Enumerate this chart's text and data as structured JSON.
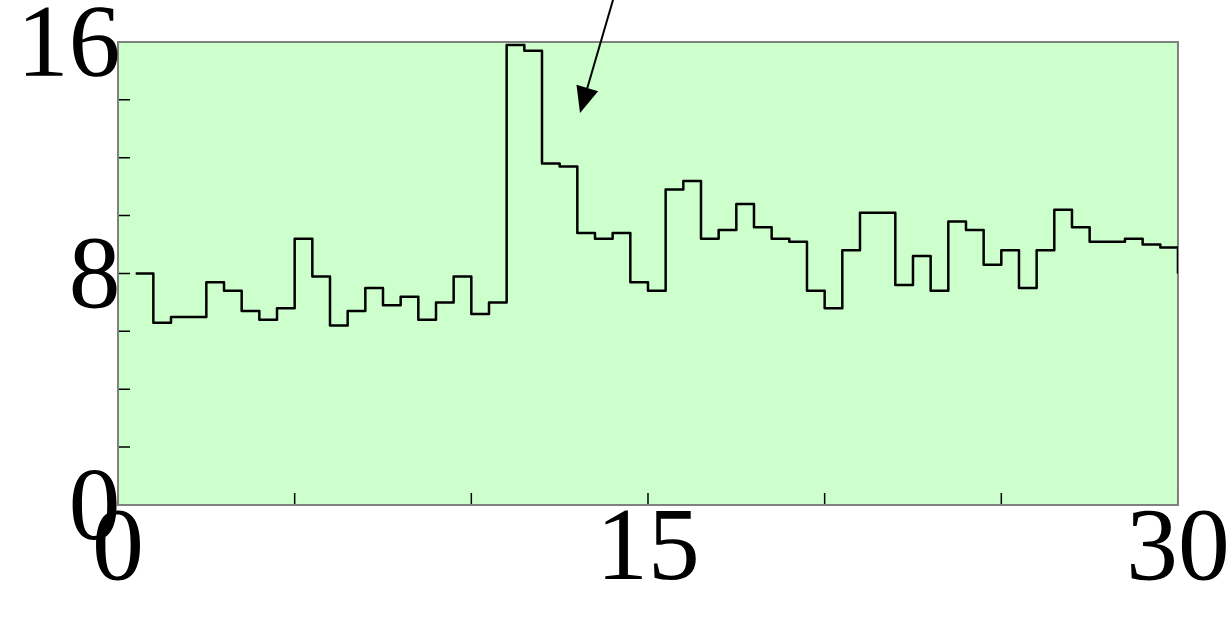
{
  "chart_data": {
    "type": "step",
    "x": [
      0.5,
      1.0,
      1.5,
      2.0,
      2.5,
      3.0,
      3.5,
      4.0,
      4.5,
      5.0,
      5.5,
      6.0,
      6.5,
      7.0,
      7.5,
      8.0,
      8.5,
      9.0,
      9.5,
      10.0,
      10.5,
      11.0,
      11.5,
      12.0,
      12.5,
      13.0,
      13.5,
      14.0,
      14.5,
      15.0,
      15.5,
      16.0,
      16.5,
      17.0,
      17.5,
      18.0,
      18.5,
      19.0,
      19.5,
      20.0,
      20.5,
      21.0,
      21.5,
      22.0,
      22.5,
      23.0,
      23.5,
      24.0,
      24.5,
      25.0,
      25.5,
      26.0,
      26.5,
      27.0,
      27.5,
      28.0,
      28.5,
      29.0,
      29.5,
      30.0
    ],
    "values": [
      8.0,
      6.3,
      6.5,
      6.5,
      7.7,
      7.4,
      6.7,
      6.4,
      6.8,
      9.2,
      7.9,
      6.2,
      6.7,
      7.5,
      6.9,
      7.2,
      6.4,
      7.0,
      7.9,
      6.6,
      7.0,
      15.9,
      15.7,
      11.8,
      11.7,
      9.4,
      9.2,
      9.4,
      7.7,
      7.4,
      10.9,
      11.2,
      9.2,
      9.5,
      10.4,
      9.6,
      9.2,
      9.1,
      7.4,
      6.8,
      8.8,
      10.1,
      10.1,
      7.6,
      8.6,
      7.4,
      9.8,
      9.5,
      8.3,
      8.8,
      7.5,
      8.8,
      10.2,
      9.6,
      9.1,
      9.1,
      9.2,
      9.0,
      8.9,
      8.0
    ],
    "color": "#000000",
    "xlim": [
      0,
      30
    ],
    "ylim": [
      0,
      16
    ],
    "xticks": [
      0,
      {
        "value": 5,
        "label": null
      },
      {
        "value": 10,
        "label": null
      },
      15,
      {
        "value": 20,
        "label": null
      },
      {
        "value": 25,
        "label": null
      },
      30
    ],
    "yticks": [
      0,
      {
        "value": 2,
        "label": null
      },
      {
        "value": 4,
        "label": null
      },
      {
        "value": 6,
        "label": null
      },
      8,
      {
        "value": 10,
        "label": null
      },
      {
        "value": 12,
        "label": null
      },
      {
        "value": 14,
        "label": null
      },
      16
    ],
    "grid": false,
    "marker": "none",
    "line_style": "solid"
  }
}
